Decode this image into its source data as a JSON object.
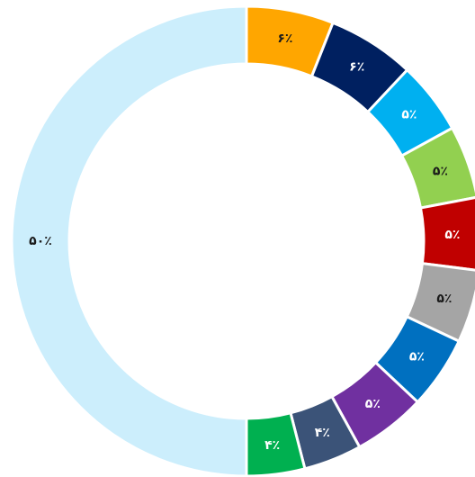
{
  "chart_data": {
    "type": "donut",
    "values": [
      6,
      6,
      5,
      5,
      5,
      5,
      5,
      5,
      4,
      4,
      50
    ],
    "value_labels": [
      "۶٪",
      "۶٪",
      "۵٪",
      "۵٪",
      "۵٪",
      "۵٪",
      "۵٪",
      "۵٪",
      "۴٪",
      "۴٪",
      "۵۰٪"
    ],
    "colors": [
      "#FFA600",
      "#002060",
      "#00B0F0",
      "#92D050",
      "#C00000",
      "#A5A5A5",
      "#0070C0",
      "#7030A0",
      "#3B5378",
      "#00B050",
      "#CCEEFC"
    ]
  }
}
